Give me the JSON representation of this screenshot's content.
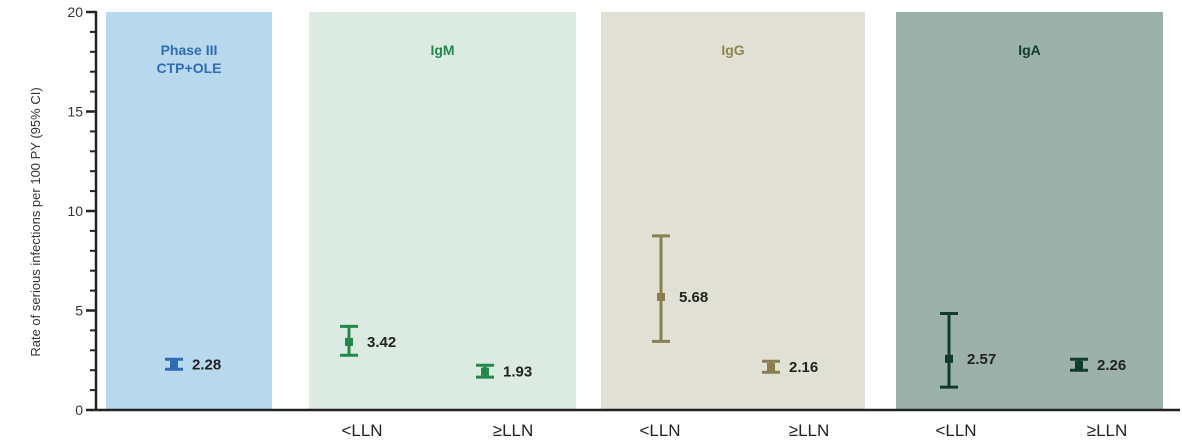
{
  "chart_data": {
    "type": "scatter",
    "ylabel": "Rate of serious infections per 100 PY (95% CI)",
    "ylim": [
      0,
      20
    ],
    "yticks": [
      "0",
      "5",
      "10",
      "15",
      "20"
    ],
    "grid": false,
    "panels": [
      {
        "title_lines": [
          "Phase III",
          "CTP+OLE"
        ],
        "color": "#b8d8ee",
        "title_color": "#2e6db3",
        "marker_color": "#2e6db3",
        "points": [
          {
            "category": "",
            "value": 2.28,
            "low": 2.05,
            "high": 2.55,
            "label": "2.28"
          }
        ]
      },
      {
        "title_lines": [
          "IgM"
        ],
        "color": "#dcebe2",
        "title_color": "#22884a",
        "marker_color": "#22884a",
        "points": [
          {
            "category": "<LLN",
            "value": 3.42,
            "low": 2.75,
            "high": 4.2,
            "label": "3.42"
          },
          {
            "category": "≥LLN",
            "value": 1.93,
            "low": 1.65,
            "high": 2.25,
            "label": "1.93"
          }
        ]
      },
      {
        "title_lines": [
          "IgG"
        ],
        "color": "#e0e0d4",
        "title_color": "#8e8652",
        "marker_color": "#8a7f4e",
        "points": [
          {
            "category": "<LLN",
            "value": 5.68,
            "low": 3.45,
            "high": 8.75,
            "label": "5.68"
          },
          {
            "category": "≥LLN",
            "value": 2.16,
            "low": 1.9,
            "high": 2.45,
            "label": "2.16"
          }
        ]
      },
      {
        "title_lines": [
          "IgA"
        ],
        "color": "#9bb1aa",
        "title_color": "#0f3d2a",
        "marker_color": "#0f3d2a",
        "points": [
          {
            "category": "<LLN",
            "value": 2.57,
            "low": 1.15,
            "high": 4.85,
            "label": "2.57"
          },
          {
            "category": "≥LLN",
            "value": 2.26,
            "low": 2.0,
            "high": 2.55,
            "label": "2.26"
          }
        ]
      }
    ]
  }
}
